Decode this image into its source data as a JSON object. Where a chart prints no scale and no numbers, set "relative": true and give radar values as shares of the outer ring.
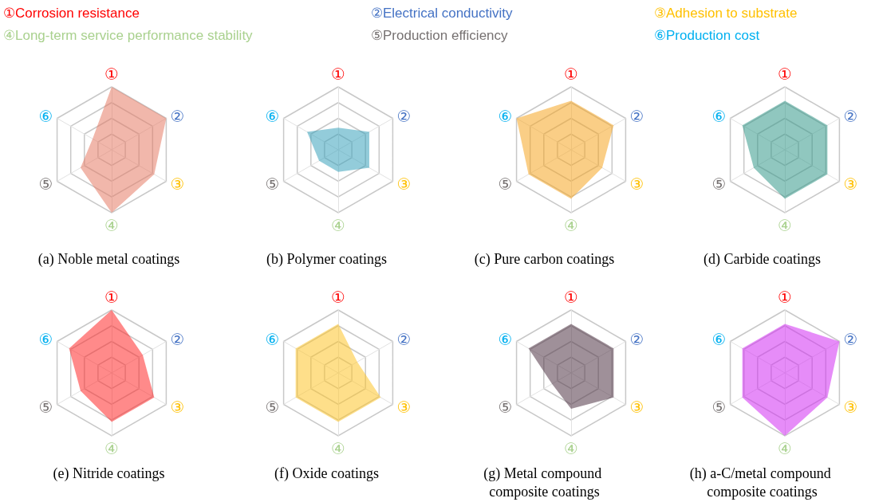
{
  "chart_data": [
    {
      "type": "other",
      "annotations": [
        "①Corrosion resistance",
        "②Electrical conductivity",
        "③Adhesion to substrate",
        "④Long-term service performance stability",
        "⑤Production efficiency",
        "⑥Production cost"
      ],
      "colors": [
        "#ff0000",
        "#4472c4",
        "#ffc000",
        "#a9d18e",
        "#767171",
        "#00b0f0"
      ]
    },
    {
      "type": "radar",
      "relative": true,
      "title": "(a) Noble metal coatings",
      "categories": [
        "①",
        "②",
        "③",
        "④",
        "⑤",
        "⑥"
      ],
      "series": [
        {
          "color": "#e57b66",
          "values": [
            1,
            1,
            0.78,
            1,
            0.57,
            0.35
          ]
        }
      ]
    },
    {
      "type": "radar",
      "relative": true,
      "title": "(b) Polymer coatings",
      "categories": [
        "①",
        "②",
        "③",
        "④",
        "⑤",
        "⑥"
      ],
      "series": [
        {
          "color": "#3aa3bb",
          "values": [
            0.35,
            0.57,
            0.57,
            0.35,
            0.35,
            0.57
          ]
        }
      ]
    },
    {
      "type": "radar",
      "relative": true,
      "title": "(c) Pure carbon coatings",
      "categories": [
        "①",
        "②",
        "③",
        "④",
        "⑤",
        "⑥"
      ],
      "series": [
        {
          "color": "#f5a623",
          "values": [
            0.78,
            0.78,
            0.57,
            0.78,
            0.78,
            1
          ]
        }
      ]
    },
    {
      "type": "radar",
      "relative": true,
      "title": "(d) Carbide coatings",
      "categories": [
        "①",
        "②",
        "③",
        "④",
        "⑤",
        "⑥"
      ],
      "series": [
        {
          "color": "#35998b",
          "values": [
            0.78,
            0.78,
            0.78,
            0.78,
            0.57,
            0.78
          ]
        }
      ]
    },
    {
      "type": "radar",
      "relative": true,
      "title": "(e) Nitride coatings",
      "categories": [
        "①",
        "②",
        "③",
        "④",
        "⑤",
        "⑥"
      ],
      "series": [
        {
          "color": "#ff2a2a",
          "values": [
            1,
            0.57,
            0.78,
            0.78,
            0.57,
            0.78
          ]
        }
      ]
    },
    {
      "type": "radar",
      "relative": true,
      "title": "(f) Oxide coatings",
      "categories": [
        "①",
        "②",
        "③",
        "④",
        "⑤",
        "⑥"
      ],
      "series": [
        {
          "color": "#fdc42a",
          "values": [
            0.78,
            0.35,
            0.78,
            0.78,
            0.78,
            0.78
          ]
        }
      ]
    },
    {
      "type": "radar",
      "relative": true,
      "title": "(g) Metal compound composite coatings",
      "categories": [
        "①",
        "②",
        "③",
        "④",
        "⑤",
        "⑥"
      ],
      "series": [
        {
          "color": "#503545",
          "values": [
            0.78,
            0.78,
            0.78,
            0.57,
            0.35,
            0.78
          ]
        }
      ]
    },
    {
      "type": "radar",
      "relative": true,
      "title": "(h) a-C/metal compound composite coatings",
      "categories": [
        "①",
        "②",
        "③",
        "④",
        "⑤",
        "⑥"
      ],
      "series": [
        {
          "color": "#d22ef2",
          "values": [
            0.78,
            1,
            0.78,
            1,
            0.78,
            0.78
          ]
        }
      ]
    }
  ]
}
